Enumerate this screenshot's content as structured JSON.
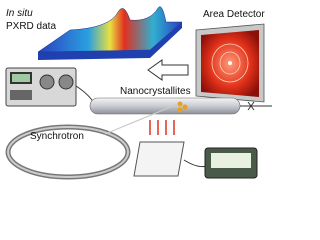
{
  "labels": {
    "in_situ": "In situ",
    "pxrd": "PXRD data",
    "detector": "Area Detector",
    "nano": "Nanocrystallites",
    "synchrotron": "Synchrotron"
  }
}
